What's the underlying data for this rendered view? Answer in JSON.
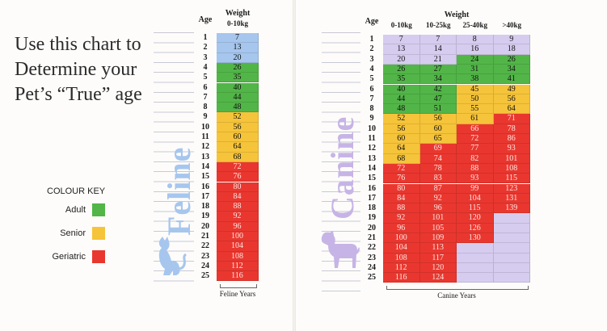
{
  "heading": [
    "Use this chart to",
    "Determine your",
    "Pet’s “True” age"
  ],
  "colour_key": {
    "title": "COLOUR KEY",
    "items": [
      {
        "label": "Adult",
        "color": "#52b548"
      },
      {
        "label": "Senior",
        "color": "#f6c43a"
      },
      {
        "label": "Geriatric",
        "color": "#e9372f"
      }
    ]
  },
  "feline": {
    "side_label": "Feline",
    "age_header": "Age",
    "weight_header": "Weight",
    "columns": [
      "0-10kg"
    ],
    "footer": "Feline Years",
    "rows": [
      {
        "age": "1",
        "values": [
          "7"
        ],
        "stages": [
          "b"
        ]
      },
      {
        "age": "2",
        "values": [
          "13"
        ],
        "stages": [
          "b"
        ]
      },
      {
        "age": "3",
        "values": [
          "20"
        ],
        "stages": [
          "b"
        ]
      },
      {
        "age": "4",
        "values": [
          "26"
        ],
        "stages": [
          "g"
        ]
      },
      {
        "age": "5",
        "values": [
          "35"
        ],
        "stages": [
          "g"
        ]
      },
      {
        "age": "6",
        "values": [
          "40"
        ],
        "stages": [
          "g"
        ]
      },
      {
        "age": "7",
        "values": [
          "44"
        ],
        "stages": [
          "g"
        ]
      },
      {
        "age": "8",
        "values": [
          "48"
        ],
        "stages": [
          "g"
        ]
      },
      {
        "age": "9",
        "values": [
          "52"
        ],
        "stages": [
          "y"
        ]
      },
      {
        "age": "10",
        "values": [
          "56"
        ],
        "stages": [
          "y"
        ]
      },
      {
        "age": "11",
        "values": [
          "60"
        ],
        "stages": [
          "y"
        ]
      },
      {
        "age": "12",
        "values": [
          "64"
        ],
        "stages": [
          "y"
        ]
      },
      {
        "age": "13",
        "values": [
          "68"
        ],
        "stages": [
          "y"
        ]
      },
      {
        "age": "14",
        "values": [
          "72"
        ],
        "stages": [
          "r"
        ]
      },
      {
        "age": "15",
        "values": [
          "76"
        ],
        "stages": [
          "r"
        ]
      },
      {
        "age": "16",
        "values": [
          "80"
        ],
        "stages": [
          "r"
        ]
      },
      {
        "age": "17",
        "values": [
          "84"
        ],
        "stages": [
          "r"
        ]
      },
      {
        "age": "18",
        "values": [
          "88"
        ],
        "stages": [
          "r"
        ]
      },
      {
        "age": "19",
        "values": [
          "92"
        ],
        "stages": [
          "r"
        ]
      },
      {
        "age": "20",
        "values": [
          "96"
        ],
        "stages": [
          "r"
        ]
      },
      {
        "age": "21",
        "values": [
          "100"
        ],
        "stages": [
          "r"
        ]
      },
      {
        "age": "22",
        "values": [
          "104"
        ],
        "stages": [
          "r"
        ]
      },
      {
        "age": "23",
        "values": [
          "108"
        ],
        "stages": [
          "r"
        ]
      },
      {
        "age": "24",
        "values": [
          "112"
        ],
        "stages": [
          "r"
        ]
      },
      {
        "age": "25",
        "values": [
          "116"
        ],
        "stages": [
          "r"
        ]
      }
    ]
  },
  "canine": {
    "side_label": "Canine",
    "age_header": "Age",
    "weight_header": "Weight",
    "columns": [
      "0-10kg",
      "10-25kg",
      "25-40kg",
      ">40kg"
    ],
    "footer": "Canine Years",
    "rows": [
      {
        "age": "1",
        "values": [
          "7",
          "7",
          "8",
          "9"
        ],
        "stages": [
          "l",
          "l",
          "l",
          "l"
        ]
      },
      {
        "age": "2",
        "values": [
          "13",
          "14",
          "16",
          "18"
        ],
        "stages": [
          "l",
          "l",
          "l",
          "l"
        ]
      },
      {
        "age": "3",
        "values": [
          "20",
          "21",
          "24",
          "26"
        ],
        "stages": [
          "l",
          "l",
          "g",
          "g"
        ]
      },
      {
        "age": "4",
        "values": [
          "26",
          "27",
          "31",
          "34"
        ],
        "stages": [
          "g",
          "g",
          "g",
          "g"
        ]
      },
      {
        "age": "5",
        "values": [
          "35",
          "34",
          "38",
          "41"
        ],
        "stages": [
          "g",
          "g",
          "g",
          "g"
        ]
      },
      {
        "age": "6",
        "values": [
          "40",
          "42",
          "45",
          "49"
        ],
        "stages": [
          "g",
          "g",
          "y",
          "y"
        ]
      },
      {
        "age": "7",
        "values": [
          "44",
          "47",
          "50",
          "56"
        ],
        "stages": [
          "g",
          "g",
          "y",
          "y"
        ]
      },
      {
        "age": "8",
        "values": [
          "48",
          "51",
          "55",
          "64"
        ],
        "stages": [
          "g",
          "g",
          "y",
          "y"
        ]
      },
      {
        "age": "9",
        "values": [
          "52",
          "56",
          "61",
          "71"
        ],
        "stages": [
          "y",
          "y",
          "y",
          "r"
        ]
      },
      {
        "age": "10",
        "values": [
          "56",
          "60",
          "66",
          "78"
        ],
        "stages": [
          "y",
          "y",
          "r",
          "r"
        ]
      },
      {
        "age": "11",
        "values": [
          "60",
          "65",
          "72",
          "86"
        ],
        "stages": [
          "y",
          "y",
          "r",
          "r"
        ]
      },
      {
        "age": "12",
        "values": [
          "64",
          "69",
          "77",
          "93"
        ],
        "stages": [
          "y",
          "r",
          "r",
          "r"
        ]
      },
      {
        "age": "13",
        "values": [
          "68",
          "74",
          "82",
          "101"
        ],
        "stages": [
          "y",
          "r",
          "r",
          "r"
        ]
      },
      {
        "age": "14",
        "values": [
          "72",
          "78",
          "88",
          "108"
        ],
        "stages": [
          "r",
          "r",
          "r",
          "r"
        ]
      },
      {
        "age": "15",
        "values": [
          "76",
          "83",
          "93",
          "115"
        ],
        "stages": [
          "r",
          "r",
          "r",
          "r"
        ]
      },
      {
        "age": "16",
        "values": [
          "80",
          "87",
          "99",
          "123"
        ],
        "stages": [
          "r",
          "r",
          "r",
          "r"
        ]
      },
      {
        "age": "17",
        "values": [
          "84",
          "92",
          "104",
          "131"
        ],
        "stages": [
          "r",
          "r",
          "r",
          "r"
        ]
      },
      {
        "age": "18",
        "values": [
          "88",
          "96",
          "115",
          "139"
        ],
        "stages": [
          "r",
          "r",
          "r",
          "r"
        ]
      },
      {
        "age": "19",
        "values": [
          "92",
          "101",
          "120",
          ""
        ],
        "stages": [
          "r",
          "r",
          "r",
          "e"
        ]
      },
      {
        "age": "20",
        "values": [
          "96",
          "105",
          "126",
          ""
        ],
        "stages": [
          "r",
          "r",
          "r",
          "e"
        ]
      },
      {
        "age": "21",
        "values": [
          "100",
          "109",
          "130",
          ""
        ],
        "stages": [
          "r",
          "r",
          "r",
          "e"
        ]
      },
      {
        "age": "22",
        "values": [
          "104",
          "113",
          "",
          ""
        ],
        "stages": [
          "r",
          "r",
          "e",
          "e"
        ]
      },
      {
        "age": "23",
        "values": [
          "108",
          "117",
          "",
          ""
        ],
        "stages": [
          "r",
          "r",
          "e",
          "e"
        ]
      },
      {
        "age": "24",
        "values": [
          "112",
          "120",
          "",
          ""
        ],
        "stages": [
          "r",
          "r",
          "e",
          "e"
        ]
      },
      {
        "age": "25",
        "values": [
          "116",
          "124",
          "",
          ""
        ],
        "stages": [
          "r",
          "r",
          "e",
          "e"
        ]
      }
    ]
  }
}
